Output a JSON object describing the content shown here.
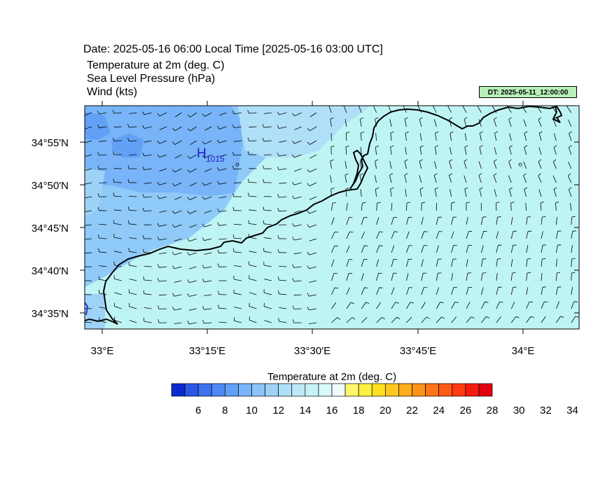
{
  "header": {
    "date_line": "Date: 2025-05-16  06:00 Local Time [2025-05-16  03:00 UTC]",
    "fields": [
      "Temperature at 2m   (deg. C)",
      "Sea Level Pressure   (hPa)",
      "Wind   (kts)"
    ],
    "dt_badge": "DT: 2025-05-11_12:00:00"
  },
  "map": {
    "lat_labels": [
      "34°55'N",
      "34°50'N",
      "34°45'N",
      "34°40'N",
      "34°35'N"
    ],
    "lon_labels": [
      "33°E",
      "33°15'E",
      "33°30'E",
      "33°45'E",
      "34°E"
    ],
    "pressure_high": {
      "symbol": "H",
      "value": "1015"
    },
    "colors": {
      "land_cool": "#6fb8f6",
      "land_mid": "#8fcaf8",
      "sea": "#bff4f4",
      "coast": "#000000",
      "barb": "#000000"
    }
  },
  "colorbar": {
    "title": "Temperature at 2m  (deg. C)",
    "tick_labels": [
      "6",
      "8",
      "10",
      "12",
      "14",
      "16",
      "18",
      "20",
      "22",
      "24",
      "26",
      "28",
      "30",
      "32",
      "34"
    ],
    "colors": [
      "#0a2acf",
      "#2b55e6",
      "#3d72ee",
      "#4f88f2",
      "#61a0f5",
      "#78b4f7",
      "#8cc4f8",
      "#9fd2f7",
      "#b0e0f8",
      "#bdeaf7",
      "#c6f3f5",
      "#dafafa",
      "#f0fcfc",
      "#fff66a",
      "#fff040",
      "#ffe020",
      "#ffc820",
      "#ffad1a",
      "#ff9218",
      "#ff7414",
      "#ff5a12",
      "#ff3a10",
      "#f51a10",
      "#e00010"
    ]
  }
}
